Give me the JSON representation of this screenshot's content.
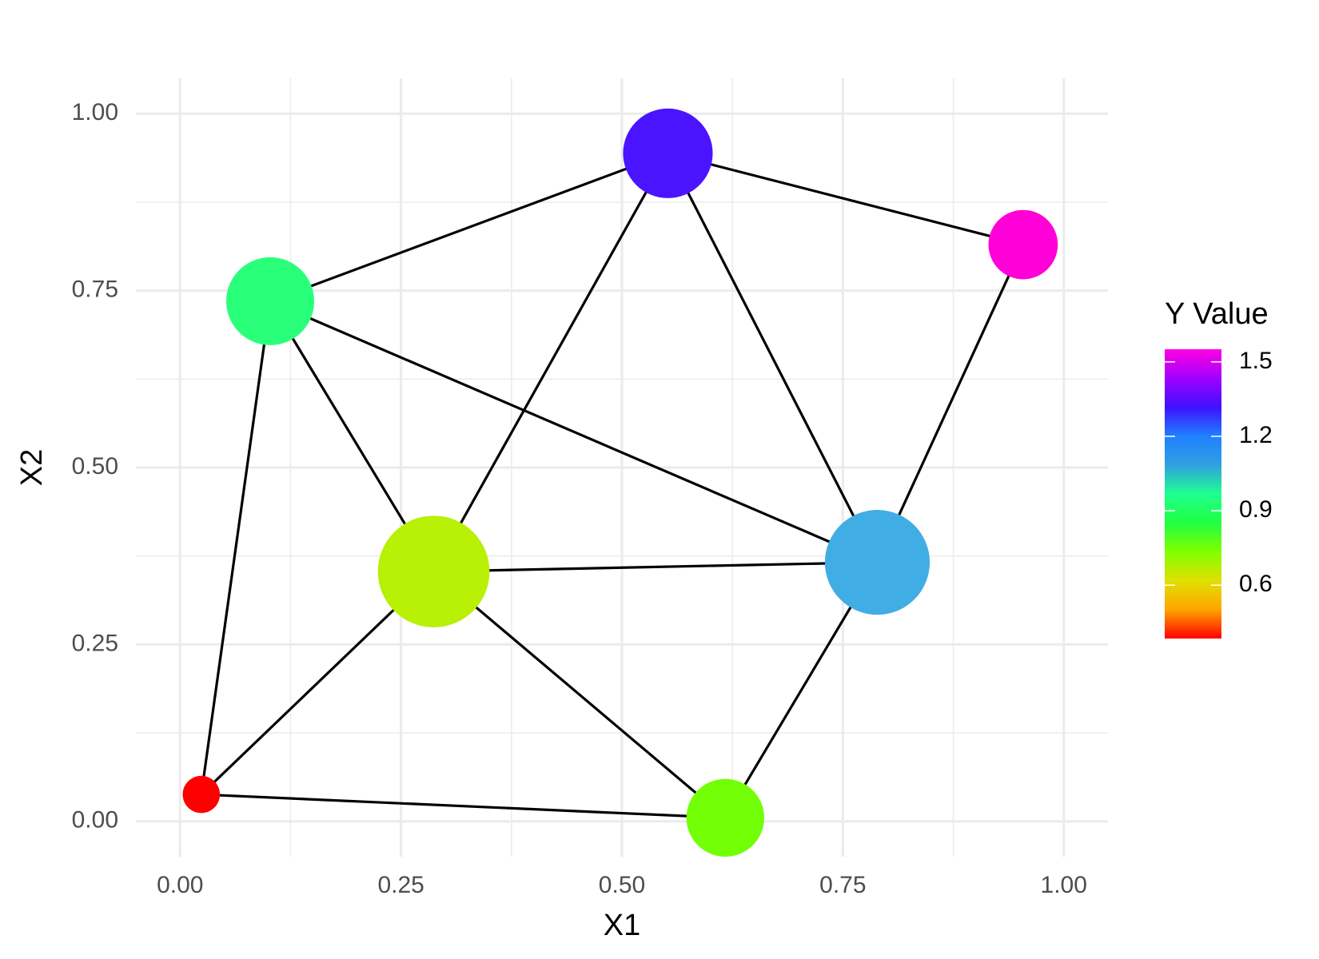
{
  "chart_data": {
    "type": "network",
    "x_label": "X1",
    "y_label": "X2",
    "legend_title": "Y Value",
    "x": [
      0.024,
      0.102,
      0.287,
      0.552,
      0.954,
      0.789,
      0.617
    ],
    "y": [
      0.038,
      0.735,
      0.353,
      0.944,
      0.815,
      0.366,
      0.005
    ],
    "values": [
      0.385,
      0.95,
      0.68,
      1.4,
      1.551,
      1.2,
      0.78
    ],
    "sizes": [
      22,
      52,
      66,
      53,
      41,
      62,
      46
    ],
    "colors": [
      "#ff0000",
      "#2aff7a",
      "#b8f006",
      "#4a14ff",
      "#ff00d8",
      "#40ade4",
      "#73ff05"
    ],
    "edges": [
      [
        0,
        1
      ],
      [
        0,
        2
      ],
      [
        0,
        6
      ],
      [
        1,
        2
      ],
      [
        1,
        3
      ],
      [
        1,
        5
      ],
      [
        2,
        3
      ],
      [
        2,
        5
      ],
      [
        2,
        6
      ],
      [
        3,
        5
      ],
      [
        3,
        4
      ],
      [
        4,
        5
      ],
      [
        5,
        6
      ]
    ],
    "edge_color": "#000000",
    "xlim": [
      -0.05,
      1.05
    ],
    "ylim": [
      -0.05,
      1.05
    ],
    "xticks": [
      {
        "value": 0,
        "label": "0.00"
      },
      0.25,
      {
        "value": 0.5,
        "label": "0.50"
      },
      0.75,
      {
        "value": 1,
        "label": "1.00"
      }
    ],
    "yticks": [
      {
        "value": 0,
        "label": "0.00"
      },
      0.25,
      {
        "value": 0.5,
        "label": "0.50"
      },
      0.75,
      {
        "value": 1,
        "label": "1.00"
      }
    ],
    "grid": true,
    "clim": [
      0.385,
      1.551
    ],
    "cticks": [
      0.6,
      0.9,
      1.2,
      1.5
    ],
    "colorscale": [
      "#ff0000",
      "#ffa500",
      "#e0e000",
      "#80ff00",
      "#20ff40",
      "#20ff90",
      "#30a0e0",
      "#2080ff",
      "#4010ff",
      "#a000ff",
      "#ff00e0"
    ]
  }
}
